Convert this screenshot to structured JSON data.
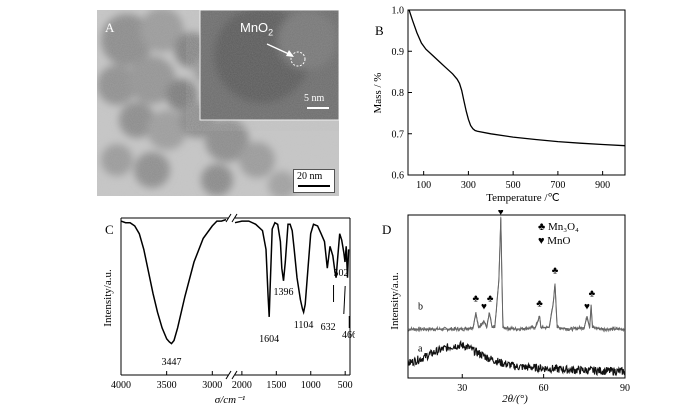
{
  "panel_a": {
    "letter": "A",
    "inset_label": "MnO",
    "inset_label_sub": "2",
    "inset_scale": "5 nm",
    "main_scale": "20 nm"
  },
  "chart_data": [
    {
      "panel": "B",
      "type": "line",
      "xlabel": "Temperature /℃",
      "ylabel": "Mass / %",
      "xlim": [
        30,
        1000
      ],
      "ylim": [
        0.6,
        1.0
      ],
      "xticks": [
        "100",
        "300",
        "500",
        "700",
        "900"
      ],
      "yticks": [
        "0.6",
        "0.7",
        "0.8",
        "0.9",
        "1.0"
      ],
      "series": [
        {
          "x": [
            35,
            50,
            70,
            90,
            110,
            140,
            170,
            200,
            230,
            250,
            260,
            270,
            280,
            290,
            300,
            310,
            320,
            330,
            340,
            400,
            500,
            600,
            700,
            800,
            900,
            1000
          ],
          "y": [
            1.0,
            0.975,
            0.945,
            0.92,
            0.905,
            0.89,
            0.875,
            0.86,
            0.845,
            0.832,
            0.822,
            0.805,
            0.78,
            0.755,
            0.735,
            0.72,
            0.712,
            0.708,
            0.706,
            0.7,
            0.692,
            0.686,
            0.681,
            0.677,
            0.674,
            0.671
          ]
        }
      ]
    },
    {
      "panel": "C",
      "type": "line",
      "xlabel": "σ/cm⁻¹",
      "ylabel": "Intensity/a.u.",
      "xticks": [
        "4000",
        "3500",
        "3000",
        "2000",
        "1500",
        "1000",
        "500"
      ],
      "peak_labels": [
        "3447",
        "1604",
        "1396",
        "1104",
        "632",
        "502",
        "466"
      ],
      "series": [
        {
          "x": [
            4000,
            3950,
            3900,
            3850,
            3800,
            3750,
            3700,
            3650,
            3600,
            3550,
            3500,
            3470,
            3447,
            3420,
            3380,
            3300,
            3200,
            3100,
            3000,
            2950,
            2900,
            2850
          ],
          "y": [
            0.98,
            0.97,
            0.97,
            0.95,
            0.9,
            0.8,
            0.66,
            0.52,
            0.4,
            0.3,
            0.23,
            0.21,
            0.2,
            0.22,
            0.3,
            0.5,
            0.72,
            0.87,
            0.95,
            0.98,
            0.98,
            0.99
          ]
        },
        {
          "x": [
            2100,
            2000,
            1900,
            1800,
            1700,
            1650,
            1620,
            1604,
            1590,
            1560,
            1520,
            1480,
            1440,
            1420,
            1396,
            1370,
            1330,
            1300,
            1270,
            1240,
            1200,
            1150,
            1120,
            1104,
            1080,
            1040,
            1000,
            960,
            900,
            850,
            800,
            760,
            720,
            680,
            650,
            632,
            610,
            580,
            550,
            520,
            502,
            485,
            466,
            450
          ],
          "y": [
            0.97,
            0.98,
            0.98,
            0.96,
            0.92,
            0.8,
            0.5,
            0.37,
            0.55,
            0.93,
            0.97,
            0.96,
            0.85,
            0.68,
            0.6,
            0.72,
            0.96,
            0.96,
            0.92,
            0.8,
            0.62,
            0.48,
            0.42,
            0.4,
            0.45,
            0.68,
            0.9,
            0.96,
            0.95,
            0.9,
            0.85,
            0.68,
            0.82,
            0.76,
            0.66,
            0.62,
            0.74,
            0.9,
            0.86,
            0.78,
            0.72,
            0.82,
            0.62,
            0.8
          ]
        }
      ]
    },
    {
      "panel": "D",
      "type": "line",
      "xlabel": "2θ/(°)",
      "ylabel": "Intensity/a.u.",
      "xlim": [
        10,
        90
      ],
      "xticks": [
        "30",
        "60",
        "90"
      ],
      "legend": [
        {
          "symbol": "♣",
          "name": "Mn₃O₄"
        },
        {
          "symbol": "♥",
          "name": "MnO"
        }
      ],
      "trace_labels": [
        "a",
        "b"
      ],
      "series": [
        {
          "name": "b",
          "x": [
            10,
            20,
            30,
            34,
            35,
            36,
            38,
            39,
            40,
            41,
            42,
            43.5,
            44.2,
            45,
            50,
            57,
            58.5,
            59,
            60,
            62,
            63.5,
            64.2,
            65,
            70,
            75,
            76,
            77,
            77.5,
            78,
            82,
            90
          ],
          "y": [
            0.3,
            0.3,
            0.3,
            0.31,
            0.4,
            0.31,
            0.35,
            0.31,
            0.4,
            0.31,
            0.31,
            0.6,
            0.98,
            0.31,
            0.3,
            0.31,
            0.38,
            0.31,
            0.31,
            0.31,
            0.45,
            0.58,
            0.31,
            0.3,
            0.31,
            0.38,
            0.31,
            0.45,
            0.31,
            0.3,
            0.3
          ]
        },
        {
          "name": "a",
          "x": [
            10,
            15,
            20,
            25,
            28,
            30,
            32,
            35,
            40,
            45,
            50,
            60,
            70,
            80,
            90
          ],
          "y": [
            0.09,
            0.12,
            0.16,
            0.19,
            0.2,
            0.2,
            0.19,
            0.16,
            0.12,
            0.09,
            0.07,
            0.06,
            0.05,
            0.045,
            0.04
          ]
        }
      ]
    }
  ]
}
